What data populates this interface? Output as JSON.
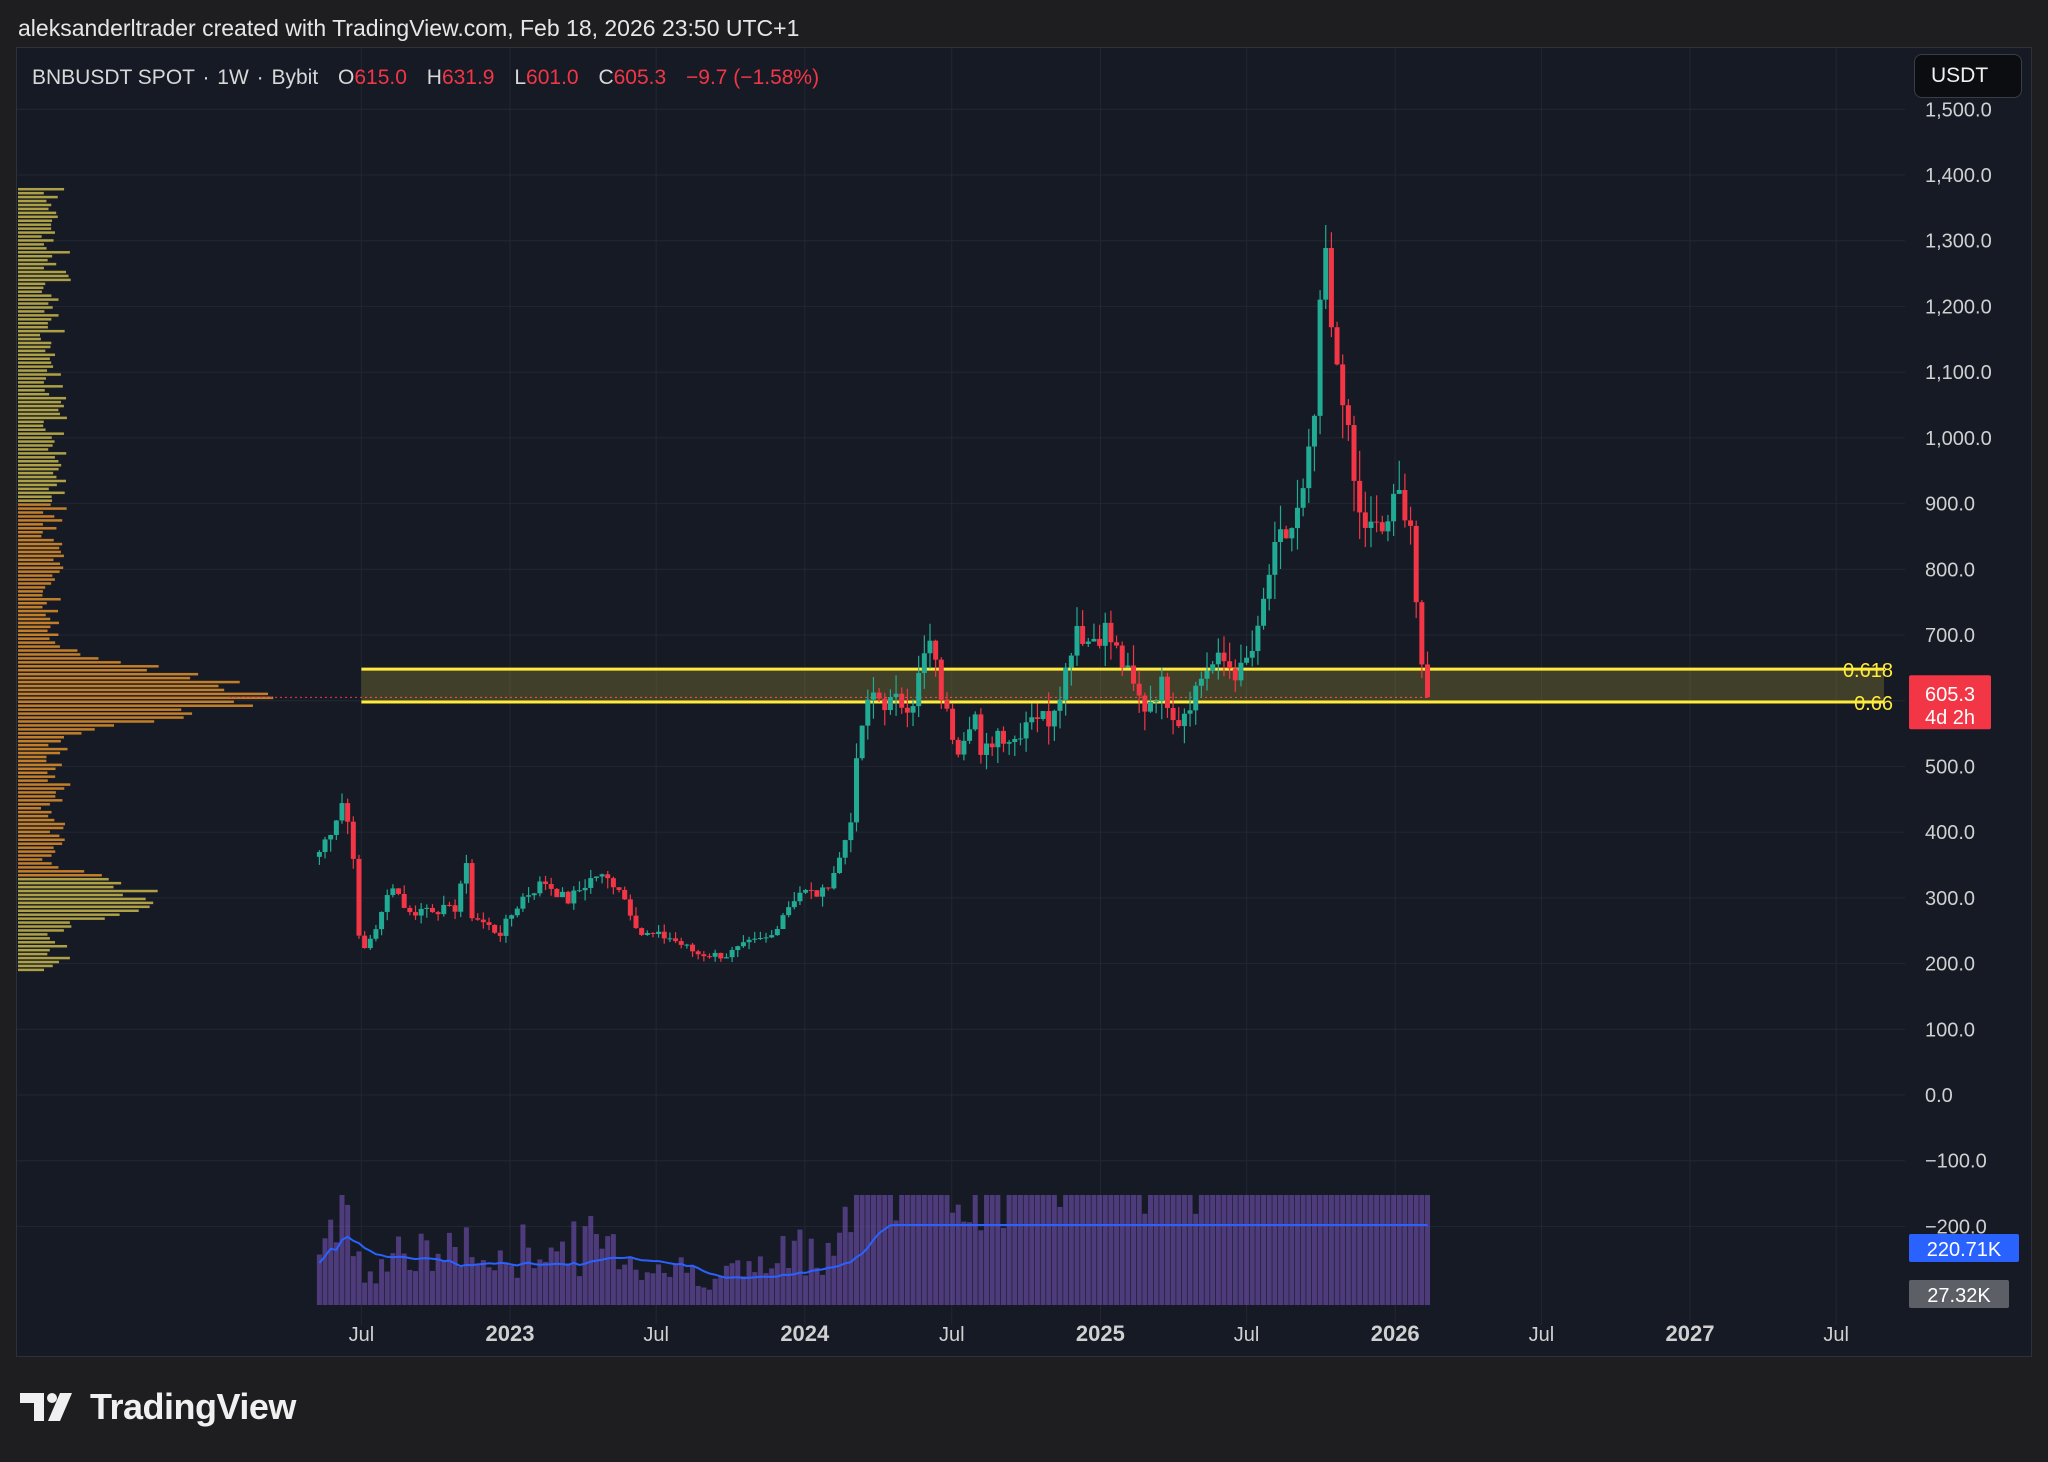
{
  "header": {
    "credit": "aleksanderltrader created with TradingView.com, Feb 18, 2026 23:50 UTC+1"
  },
  "legend": {
    "symbol": "BNBUSDT SPOT",
    "interval": "1W",
    "exchange": "Bybit",
    "o_label": "O",
    "o_value": "615.0",
    "h_label": "H",
    "h_value": "631.9",
    "l_label": "L",
    "l_value": "601.0",
    "c_label": "C",
    "c_value": "605.3",
    "change": "−9.7 (−1.58%)"
  },
  "toolbar": {
    "currency_button": "USDT"
  },
  "footer": {
    "brand": "TradingView"
  },
  "colors": {
    "background": "#161a25",
    "up": "#22ab94",
    "down": "#f23645",
    "zone": "#ffeb3b",
    "volume_ma": "#2962ff",
    "volume": "#7e57c2"
  },
  "chart_data": {
    "type": "candlestick",
    "symbol": "BNBUSDT",
    "timeframe": "1W",
    "y_axis": {
      "ticks": [
        "1,500.0",
        "1,400.0",
        "1,300.0",
        "1,200.0",
        "1,100.0",
        "1,000.0",
        "900.0",
        "800.0",
        "700.0",
        "600.0",
        "500.0",
        "400.0",
        "300.0",
        "200.0",
        "100.0",
        "0.0",
        "−100.0",
        "−200.0"
      ],
      "ylim": [
        -220,
        1510
      ]
    },
    "x_axis": {
      "ticks": [
        {
          "label": "Jul",
          "date": "2022-07-01",
          "bold": false
        },
        {
          "label": "2023",
          "date": "2023-01-01",
          "bold": true
        },
        {
          "label": "Jul",
          "date": "2023-07-01",
          "bold": false
        },
        {
          "label": "2024",
          "date": "2024-01-01",
          "bold": true
        },
        {
          "label": "Jul",
          "date": "2024-07-01",
          "bold": false
        },
        {
          "label": "2025",
          "date": "2025-01-01",
          "bold": true
        },
        {
          "label": "Jul",
          "date": "2025-07-01",
          "bold": false
        },
        {
          "label": "2026",
          "date": "2026-01-01",
          "bold": true
        },
        {
          "label": "Jul",
          "date": "2026-07-01",
          "bold": false
        },
        {
          "label": "2027",
          "date": "2027-01-01",
          "bold": true
        },
        {
          "label": "Jul",
          "date": "2027-07-01",
          "bold": false
        }
      ]
    },
    "fib_zone": {
      "start_date": "2022-07-01",
      "levels": [
        {
          "label": "0.618",
          "price": 648
        },
        {
          "label": "0.66",
          "price": 598
        }
      ]
    },
    "last_price": {
      "value": "605.3",
      "price": 605.3,
      "countdown": "4d 2h"
    },
    "volume": {
      "ma_value": "220.71K",
      "last_value": "27.32K"
    },
    "price_path": [
      {
        "date": "2022-05-10",
        "close": 370
      },
      {
        "date": "2022-05-30",
        "close": 420
      },
      {
        "date": "2022-06-06",
        "close": 450
      },
      {
        "date": "2022-06-20",
        "close": 390
      },
      {
        "date": "2022-06-27",
        "close": 240
      },
      {
        "date": "2022-07-04",
        "close": 220
      },
      {
        "date": "2022-07-25",
        "close": 270
      },
      {
        "date": "2022-08-08",
        "close": 325
      },
      {
        "date": "2022-08-29",
        "close": 275
      },
      {
        "date": "2022-09-19",
        "close": 285
      },
      {
        "date": "2022-10-24",
        "close": 280
      },
      {
        "date": "2022-11-07",
        "close": 355
      },
      {
        "date": "2022-11-14",
        "close": 275
      },
      {
        "date": "2022-12-19",
        "close": 245
      },
      {
        "date": "2023-01-16",
        "close": 300
      },
      {
        "date": "2023-02-13",
        "close": 325
      },
      {
        "date": "2023-03-13",
        "close": 295
      },
      {
        "date": "2023-04-17",
        "close": 335
      },
      {
        "date": "2023-05-15",
        "close": 320
      },
      {
        "date": "2023-06-12",
        "close": 245
      },
      {
        "date": "2023-07-17",
        "close": 240
      },
      {
        "date": "2023-08-21",
        "close": 215
      },
      {
        "date": "2023-09-25",
        "close": 212
      },
      {
        "date": "2023-10-23",
        "close": 230
      },
      {
        "date": "2023-11-20",
        "close": 240
      },
      {
        "date": "2023-12-04",
        "close": 275
      },
      {
        "date": "2023-12-25",
        "close": 310
      },
      {
        "date": "2024-01-22",
        "close": 305
      },
      {
        "date": "2024-02-12",
        "close": 355
      },
      {
        "date": "2024-02-26",
        "close": 415
      },
      {
        "date": "2024-03-11",
        "close": 560
      },
      {
        "date": "2024-03-25",
        "close": 610
      },
      {
        "date": "2024-04-15",
        "close": 595
      },
      {
        "date": "2024-05-13",
        "close": 600
      },
      {
        "date": "2024-06-03",
        "close": 690
      },
      {
        "date": "2024-06-24",
        "close": 580
      },
      {
        "date": "2024-07-08",
        "close": 530
      },
      {
        "date": "2024-07-29",
        "close": 590
      },
      {
        "date": "2024-08-05",
        "close": 505
      },
      {
        "date": "2024-08-26",
        "close": 555
      },
      {
        "date": "2024-09-16",
        "close": 540
      },
      {
        "date": "2024-10-07",
        "close": 585
      },
      {
        "date": "2024-10-28",
        "close": 570
      },
      {
        "date": "2024-11-18",
        "close": 640
      },
      {
        "date": "2024-12-02",
        "close": 720
      },
      {
        "date": "2024-12-16",
        "close": 690
      },
      {
        "date": "2025-01-06",
        "close": 710
      },
      {
        "date": "2025-01-27",
        "close": 660
      },
      {
        "date": "2025-02-10",
        "close": 620
      },
      {
        "date": "2025-02-24",
        "close": 590
      },
      {
        "date": "2025-03-17",
        "close": 625
      },
      {
        "date": "2025-04-07",
        "close": 570
      },
      {
        "date": "2025-04-21",
        "close": 600
      },
      {
        "date": "2025-05-12",
        "close": 650
      },
      {
        "date": "2025-06-02",
        "close": 660
      },
      {
        "date": "2025-06-23",
        "close": 640
      },
      {
        "date": "2025-07-14",
        "close": 690
      },
      {
        "date": "2025-07-28",
        "close": 790
      },
      {
        "date": "2025-08-11",
        "close": 840
      },
      {
        "date": "2025-08-25",
        "close": 860
      },
      {
        "date": "2025-09-08",
        "close": 900
      },
      {
        "date": "2025-09-22",
        "close": 1010
      },
      {
        "date": "2025-10-06",
        "close": 1300
      },
      {
        "date": "2025-10-13",
        "close": 1150
      },
      {
        "date": "2025-10-27",
        "close": 1090
      },
      {
        "date": "2025-11-03",
        "close": 1000
      },
      {
        "date": "2025-11-17",
        "close": 880
      },
      {
        "date": "2025-12-01",
        "close": 860
      },
      {
        "date": "2025-12-15",
        "close": 855
      },
      {
        "date": "2026-01-05",
        "close": 910
      },
      {
        "date": "2026-01-19",
        "close": 890
      },
      {
        "date": "2026-01-26",
        "close": 770
      },
      {
        "date": "2026-02-02",
        "close": 640
      },
      {
        "date": "2026-02-09",
        "close": 615
      },
      {
        "date": "2026-02-16",
        "close": 605
      }
    ]
  }
}
